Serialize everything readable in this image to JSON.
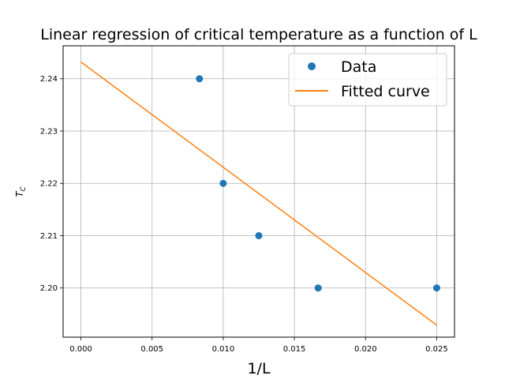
{
  "chart_data": {
    "type": "scatter",
    "title": "Linear regression of critical temperature as a function of L",
    "xlabel": "1/L",
    "ylabel": "T_C",
    "xlim": [
      -0.00125,
      0.02625
    ],
    "ylim": [
      2.1906,
      2.2463
    ],
    "x_ticks": [
      0.0,
      0.005,
      0.01,
      0.015,
      0.02,
      0.025
    ],
    "x_tick_labels": [
      "0.000",
      "0.005",
      "0.010",
      "0.015",
      "0.020",
      "0.025"
    ],
    "y_ticks": [
      2.2,
      2.21,
      2.22,
      2.23,
      2.24
    ],
    "y_tick_labels": [
      "2.20",
      "2.21",
      "2.22",
      "2.23",
      "2.24"
    ],
    "grid": true,
    "legend_position": "top-right",
    "series": [
      {
        "name": "Data",
        "kind": "scatter",
        "color": "#1f77b4",
        "x": [
          0.00833,
          0.01,
          0.0125,
          0.01667,
          0.025
        ],
        "y": [
          2.24,
          2.22,
          2.21,
          2.2,
          2.2
        ]
      },
      {
        "name": "Fitted curve",
        "kind": "line",
        "color": "#ff7f0e",
        "x": [
          0.0,
          0.025
        ],
        "y": [
          2.2432,
          2.1929
        ]
      }
    ]
  }
}
